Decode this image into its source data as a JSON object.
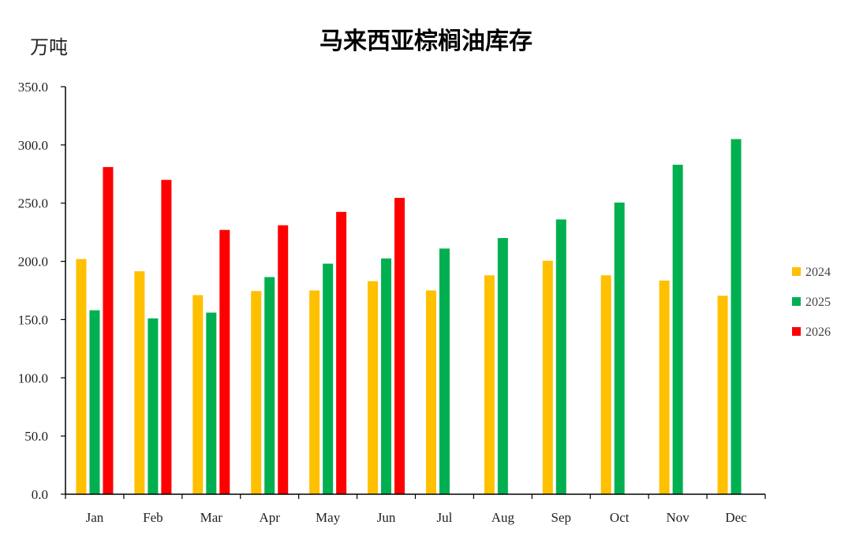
{
  "chart_data": {
    "type": "bar",
    "title": "马来西亚棕榈油库存",
    "ylabel": "万吨",
    "xlabel": "",
    "ylim": [
      0,
      350
    ],
    "yticks": [
      "0.0",
      "50.0",
      "100.0",
      "150.0",
      "200.0",
      "250.0",
      "300.0",
      "350.0"
    ],
    "categories": [
      "Jan",
      "Feb",
      "Mar",
      "Apr",
      "May",
      "Jun",
      "Jul",
      "Aug",
      "Sep",
      "Oct",
      "Nov",
      "Dec"
    ],
    "series": [
      {
        "name": "2024",
        "color": "#FFC000",
        "values": [
          202,
          191.5,
          171,
          174.5,
          175,
          183,
          175,
          188,
          200.5,
          188,
          183.5,
          170.5
        ]
      },
      {
        "name": "2025",
        "color": "#00B050",
        "values": [
          158,
          151,
          156,
          186.5,
          198,
          202.5,
          211,
          220,
          236,
          250.5,
          283,
          305
        ]
      },
      {
        "name": "2026",
        "color": "#FF0000",
        "values": [
          281,
          270,
          227,
          231,
          242.5,
          254.5,
          null,
          null,
          null,
          null,
          null,
          null
        ]
      }
    ],
    "grid": false,
    "legend_position": "right"
  }
}
